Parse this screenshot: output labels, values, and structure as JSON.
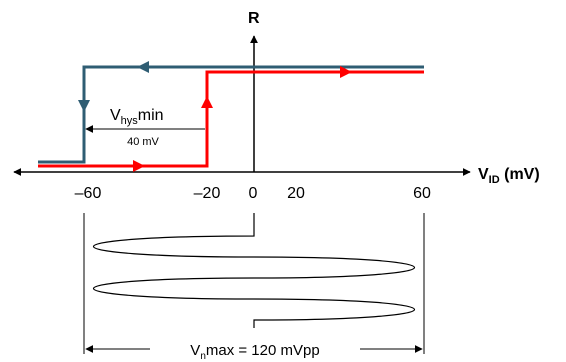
{
  "axes": {
    "y_label": "R",
    "x_label_main": "V",
    "x_label_sub": "ID",
    "x_label_unit": " (mV)"
  },
  "ticks": [
    "–60",
    "–20",
    "0",
    "20",
    "60"
  ],
  "hysteresis": {
    "label_main": "V",
    "label_sub": "hys",
    "label_suffix": "min",
    "value": "40 mV"
  },
  "noise": {
    "label_main": "V",
    "label_sub": "n",
    "label_suffix": "max = 120 mVpp"
  },
  "colors": {
    "falling_trace": "#2F5D73",
    "rising_trace": "#FF0000",
    "axis": "#000000"
  }
}
